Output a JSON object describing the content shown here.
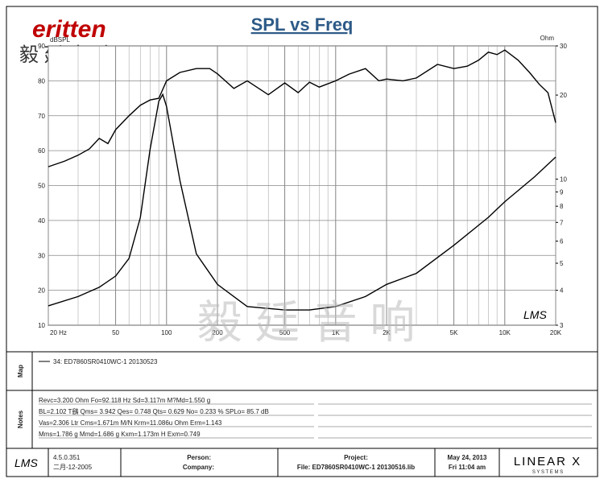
{
  "chart_data": {
    "type": "line",
    "title": "SPL vs Freq",
    "ylabel": "dBSPL",
    "y2label": "Ohm",
    "xscale": "log",
    "y2scale": "log",
    "grid": true,
    "xlim": [
      20,
      20000
    ],
    "ylim": [
      10,
      90
    ],
    "y2lim": [
      3,
      30
    ],
    "xticks": [
      {
        "value": 20,
        "label": "20 Hz"
      },
      50,
      100,
      200,
      500,
      {
        "value": 1000,
        "label": "1K"
      },
      {
        "value": 2000,
        "label": "2K"
      },
      {
        "value": 5000,
        "label": "5K"
      },
      {
        "value": 10000,
        "label": "10K"
      },
      {
        "value": 20000,
        "label": "20K"
      }
    ],
    "yticks": [
      10,
      20,
      30,
      40,
      50,
      60,
      70,
      80,
      90
    ],
    "y2ticks": [
      3,
      4,
      5,
      6,
      7,
      8,
      9,
      10,
      20,
      30
    ],
    "series": [
      {
        "name": "SPL",
        "color": "#000000",
        "x": [
          20,
          25,
          30,
          35,
          40,
          45,
          50,
          60,
          70,
          80,
          90,
          100,
          120,
          150,
          180,
          200,
          250,
          300,
          400,
          500,
          600,
          700,
          800,
          1000,
          1200,
          1500,
          1800,
          2000,
          2500,
          3000,
          4000,
          5000,
          6000,
          7000,
          8000,
          9000,
          10000,
          12000,
          14000,
          16000,
          18000,
          20000
        ],
        "values": [
          55.4,
          57,
          58.7,
          60.5,
          63.5,
          62,
          66,
          70,
          73,
          74.5,
          75,
          80,
          82.4,
          83.5,
          83.5,
          82,
          77.8,
          80,
          76,
          79.4,
          76.6,
          79.6,
          78.2,
          80,
          81.9,
          83.5,
          80,
          80.5,
          80,
          80.8,
          84.7,
          83.5,
          84.2,
          85.9,
          88.2,
          87.5,
          88.8,
          85.9,
          82.4,
          79,
          76.6,
          68
        ]
      },
      {
        "name": "Impedance",
        "color": "#000000",
        "axis": "y2",
        "x": [
          20,
          30,
          40,
          50,
          60,
          70,
          80,
          90,
          95,
          100,
          120,
          150,
          200,
          300,
          500,
          700,
          1000,
          1500,
          2000,
          3000,
          5000,
          8000,
          10000,
          15000,
          20000
        ],
        "values": [
          3.52,
          3.8,
          4.1,
          4.5,
          5.2,
          7.3,
          12.8,
          19,
          20.1,
          18.2,
          9.9,
          5.4,
          4.2,
          3.5,
          3.4,
          3.4,
          3.5,
          3.8,
          4.2,
          4.6,
          5.8,
          7.3,
          8.3,
          10.2,
          12
        ]
      }
    ]
  },
  "logo": {
    "brand": "eritten",
    "chinese": "毅 廷 音 响",
    "watermark": "毅 廷 音 响",
    "plot_mark": "LMS"
  },
  "map": {
    "label": "Map",
    "legend": "34: ED7860SR0410WC-1  20130523"
  },
  "notes": {
    "label": "Notes",
    "lines": [
      "Revc=3.200 Ohm  Fo=92.118 Hz  Sd=3.117m M?Md=1.550 g",
      "BL=2.102 T鷂  Qms= 3.942  Qes= 0.748  Qts= 0.629  No= 0.233 %  SPLo= 85.7 dB",
      "Vas=2.306 Ltr  Cms=1.671m M/N  Krm=11.086u Ohm  Erm=1.143",
      "Mms=1.786 g  Mmd=1.686 g  Kxm=1.173m H  Exm=0.749"
    ]
  },
  "footer": {
    "app": "LMS",
    "version": "4.5.0.351",
    "build_date": "二月-12-2005",
    "person": "Person:",
    "company": "Company:",
    "project": "Project:",
    "file": "File: ED7860SR0410WC-1  20130516.lib",
    "date": "May 24, 2013",
    "time": "Fri 11:04 am",
    "vendor": "LINEAR X",
    "vendor_sub": "S Y S T E M S"
  }
}
